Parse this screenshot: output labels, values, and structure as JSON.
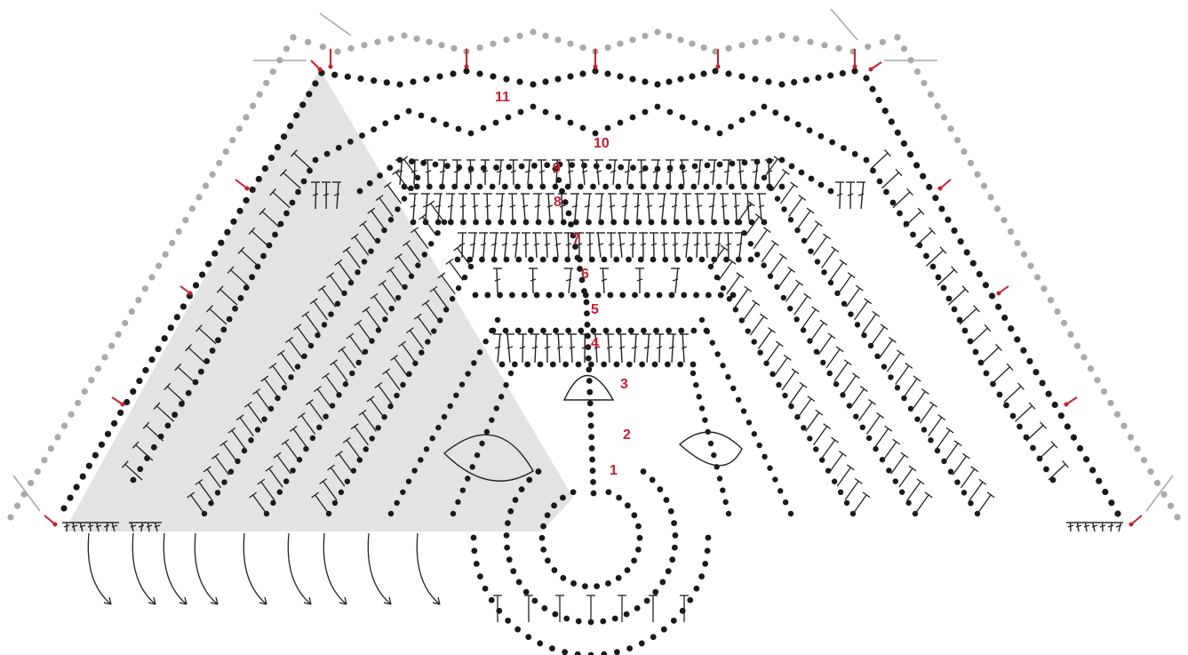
{
  "row_labels": [
    "1",
    "2",
    "3",
    "4",
    "5",
    "6",
    "7",
    "8",
    "9",
    "10",
    "11"
  ]
}
